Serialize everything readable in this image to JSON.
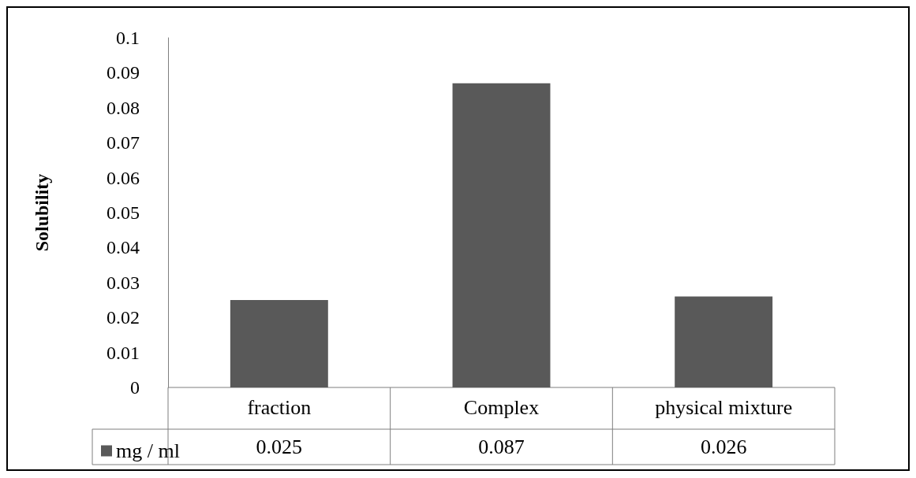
{
  "chart_data": {
    "type": "bar",
    "ylabel": "Solubility",
    "categories": [
      "fraction",
      "Complex",
      "physical mixture"
    ],
    "series": [
      {
        "name": "mg / ml",
        "color": "#595959",
        "values": [
          0.025,
          0.087,
          0.026
        ]
      }
    ],
    "ylim": [
      0,
      0.1
    ],
    "yticks": [
      0,
      0.01,
      0.02,
      0.03,
      0.04,
      0.05,
      0.06,
      0.07,
      0.08,
      0.09,
      0.1
    ],
    "grid": false,
    "legend": "bottom left",
    "data_labels": true
  }
}
